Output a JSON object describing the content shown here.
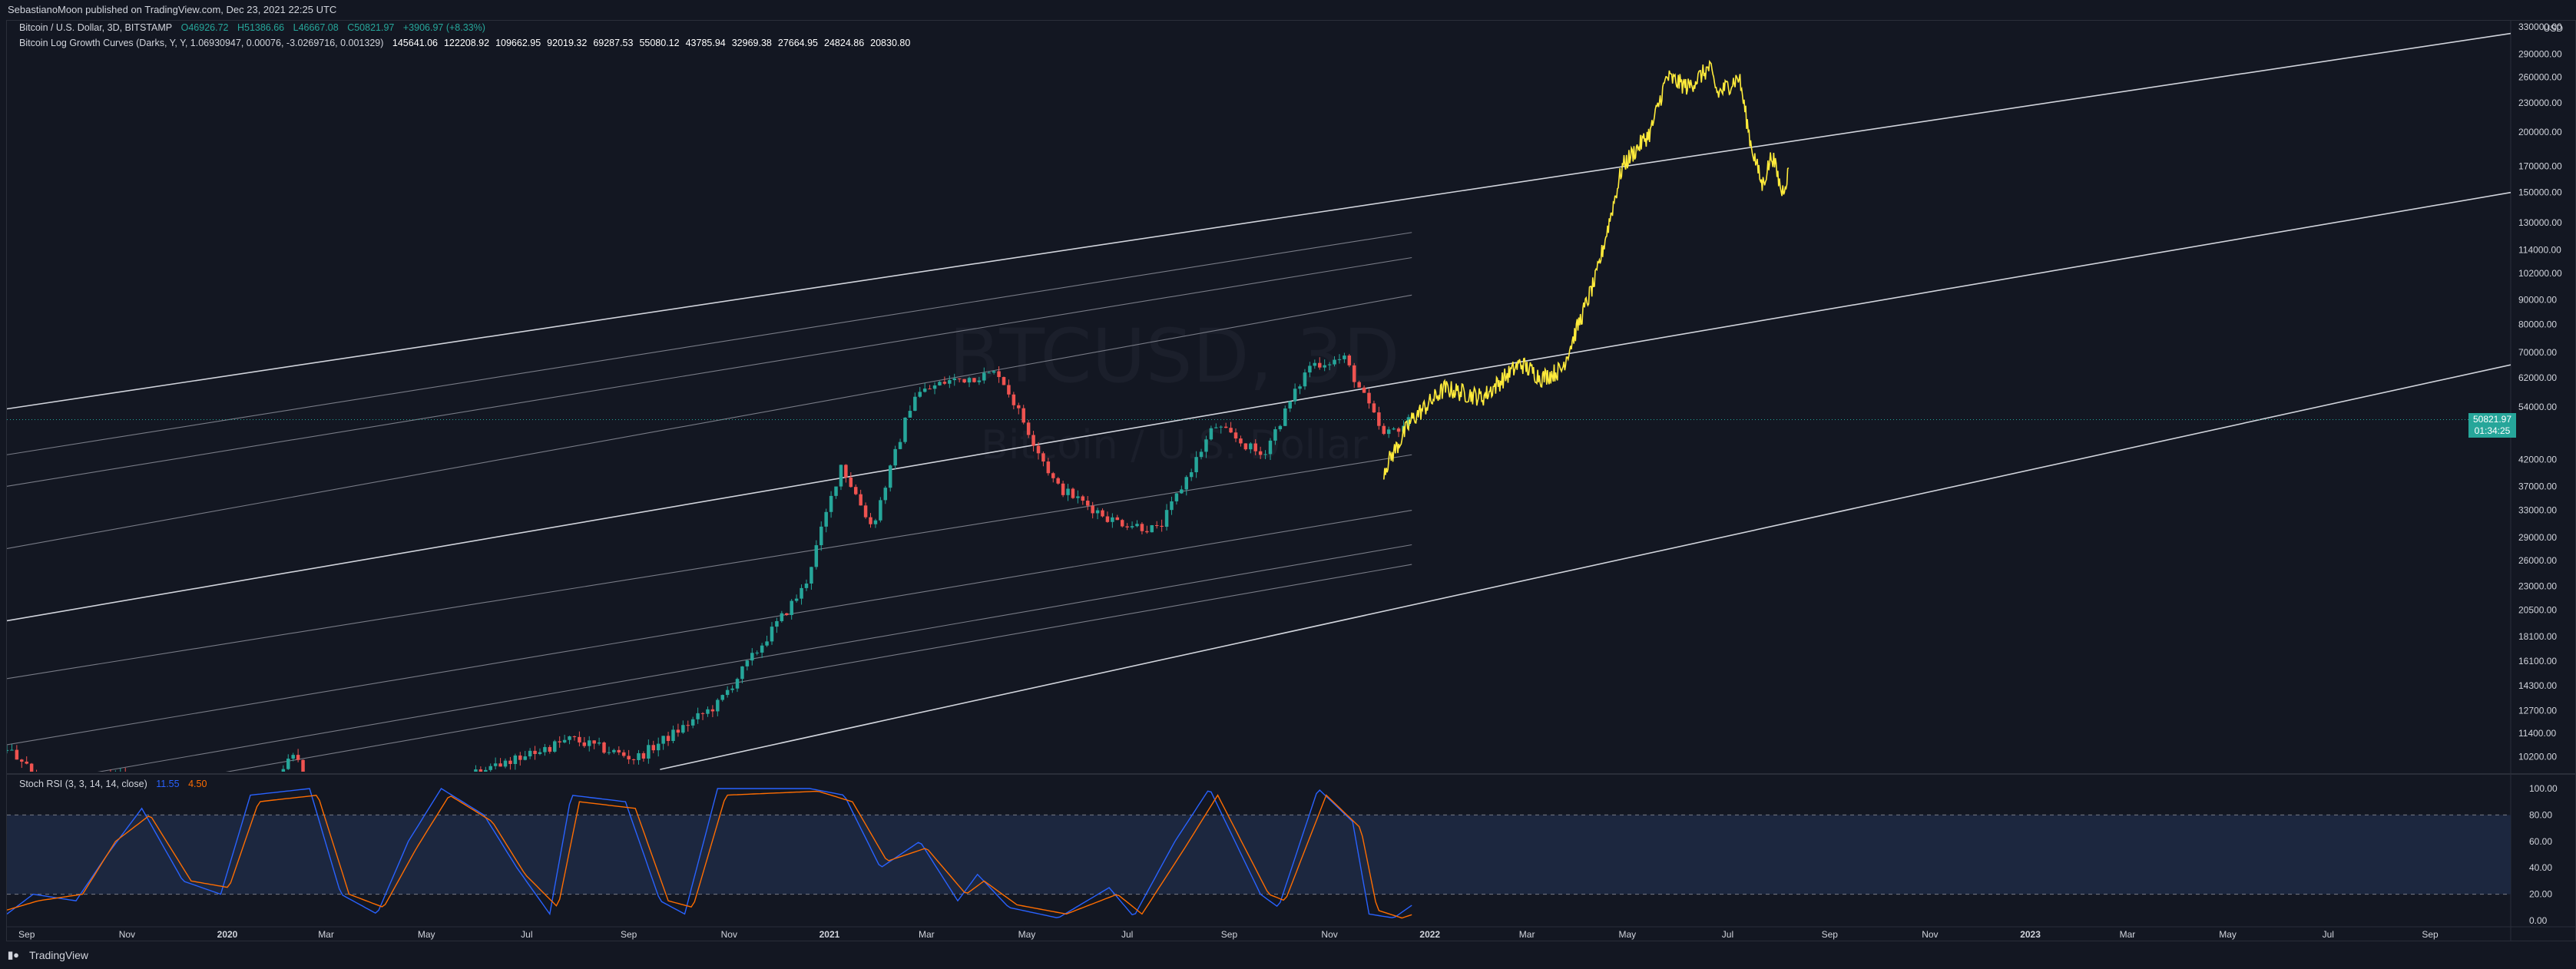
{
  "header": {
    "publisher_line": "SebastianoMoon published on TradingView.com, Dec 23, 2021 22:25 UTC"
  },
  "legend": {
    "symbol": "Bitcoin / U.S. Dollar, 3D, BITSTAMP",
    "open": "O46926.72",
    "high": "H51386.66",
    "low": "L46667.08",
    "close": "C50821.97",
    "change": "+3906.97 (+8.33%)",
    "indicator_name": "Bitcoin Log Growth Curves (Darks, Y, Y, 1.06930947, 0.00076, -3.0269716, 0.001329)",
    "indicator_values": [
      "145641.06",
      "122208.92",
      "109662.95",
      "92019.32",
      "69287.53",
      "55080.12",
      "43785.94",
      "32969.38",
      "27664.95",
      "24824.86",
      "20830.80"
    ],
    "stoch_name": "Stoch RSI (3, 3, 14, 14, close)",
    "stoch_k": "11.55",
    "stoch_d": "4.50"
  },
  "watermark": {
    "symbol": "BTCUSD, 3D",
    "name": "Bitcoin / U.S. Dollar"
  },
  "price_axis": {
    "unit": "USD",
    "last_price": "50821.97",
    "countdown": "01:34:25",
    "labels": [
      "330000.00",
      "290000.00",
      "260000.00",
      "230000.00",
      "200000.00",
      "170000.00",
      "150000.00",
      "130000.00",
      "114000.00",
      "102000.00",
      "90000.00",
      "80000.00",
      "70000.00",
      "62000.00",
      "54000.00",
      "42000.00",
      "37000.00",
      "33000.00",
      "29000.00",
      "26000.00",
      "23000.00",
      "20500.00",
      "18100.00",
      "16100.00",
      "14300.00",
      "12700.00",
      "11400.00",
      "10200.00"
    ]
  },
  "stoch_axis": {
    "labels": [
      "100.00",
      "80.00",
      "60.00",
      "40.00",
      "20.00",
      "0.00"
    ]
  },
  "time_axis": {
    "labels": [
      "Sep",
      "Nov",
      "2020",
      "Mar",
      "May",
      "Jul",
      "Sep",
      "Nov",
      "2021",
      "Mar",
      "May",
      "Jul",
      "Sep",
      "Nov",
      "2022",
      "Mar",
      "May",
      "Jul",
      "Sep",
      "Nov",
      "2023",
      "Mar",
      "May",
      "Jul",
      "Sep"
    ]
  },
  "footer": {
    "brand": "TradingView"
  },
  "colors": {
    "background": "#131722",
    "up": "#26a69a",
    "down": "#ef5350",
    "projection": "#ffeb3b",
    "k_line": "#2962ff",
    "d_line": "#ff6d00",
    "band_fill": "#1e2a44"
  },
  "chart_data": [
    {
      "type": "candlestick",
      "title": "Bitcoin / U.S. Dollar, 3D, BITSTAMP",
      "scale": "log",
      "ylabel": "USD",
      "ylim": [
        9500,
        340000
      ],
      "x_range": [
        "2019-08-20",
        "2023-10-20"
      ],
      "anchors": [
        [
          "2019-08-20",
          10500
        ],
        [
          "2019-09-25",
          8300
        ],
        [
          "2019-10-26",
          9400
        ],
        [
          "2019-12-18",
          6600
        ],
        [
          "2020-02-12",
          10300
        ],
        [
          "2020-03-13",
          4900
        ],
        [
          "2020-04-30",
          8800
        ],
        [
          "2020-06-10",
          9700
        ],
        [
          "2020-07-28",
          11100
        ],
        [
          "2020-09-05",
          10100
        ],
        [
          "2020-10-25",
          13100
        ],
        [
          "2020-12-17",
          23000
        ],
        [
          "2021-01-08",
          41000
        ],
        [
          "2021-01-27",
          30400
        ],
        [
          "2021-02-21",
          57000
        ],
        [
          "2021-03-13",
          61000
        ],
        [
          "2021-04-14",
          63500
        ],
        [
          "2021-05-19",
          37000
        ],
        [
          "2021-06-22",
          31500
        ],
        [
          "2021-07-20",
          30000
        ],
        [
          "2021-08-23",
          49500
        ],
        [
          "2021-09-21",
          42800
        ],
        [
          "2021-10-20",
          66000
        ],
        [
          "2021-11-10",
          68000
        ],
        [
          "2021-12-04",
          47000
        ],
        [
          "2021-12-21",
          50822
        ]
      ]
    },
    {
      "type": "line",
      "title": "projection",
      "scale": "log",
      "anchors": [
        [
          "2021-12-04",
          40000
        ],
        [
          "2021-12-21",
          50822
        ],
        [
          "2022-01-10",
          59000
        ],
        [
          "2022-02-02",
          56500
        ],
        [
          "2022-02-25",
          66500
        ],
        [
          "2022-03-10",
          62000
        ],
        [
          "2022-03-22",
          64500
        ],
        [
          "2022-04-12",
          100000
        ],
        [
          "2022-04-28",
          170000
        ],
        [
          "2022-05-15",
          200000
        ],
        [
          "2022-05-25",
          260000
        ],
        [
          "2022-06-07",
          248000
        ],
        [
          "2022-06-20",
          272000
        ],
        [
          "2022-06-25",
          240000
        ],
        [
          "2022-07-08",
          260000
        ],
        [
          "2022-07-15",
          190000
        ],
        [
          "2022-07-22",
          155000
        ],
        [
          "2022-07-28",
          180000
        ],
        [
          "2022-08-03",
          150000
        ],
        [
          "2022-08-07",
          165000
        ]
      ]
    },
    {
      "type": "line",
      "title": "Bitcoin Log Growth Curves",
      "scale": "log",
      "lines": [
        {
          "from": [
            "2019-08-20",
            53500
          ],
          "to": [
            "2023-10-20",
            320000
          ],
          "weight": "strong"
        },
        {
          "from": [
            "2019-08-20",
            43000
          ],
          "to": [
            "2021-12-21",
            124000
          ],
          "weight": "light"
        },
        {
          "from": [
            "2019-08-20",
            37000
          ],
          "to": [
            "2021-12-21",
            110000
          ],
          "weight": "light"
        },
        {
          "from": [
            "2019-08-20",
            27500
          ],
          "to": [
            "2021-12-21",
            92000
          ],
          "weight": "light"
        },
        {
          "from": [
            "2019-08-20",
            19500
          ],
          "to": [
            "2023-10-20",
            150000
          ],
          "weight": "strong"
        },
        {
          "from": [
            "2019-08-20",
            14800
          ],
          "to": [
            "2021-12-21",
            43000
          ],
          "weight": "light"
        },
        {
          "from": [
            "2019-08-20",
            10800
          ],
          "to": [
            "2021-12-21",
            33000
          ],
          "weight": "light"
        },
        {
          "from": [
            "2019-08-20",
            8800
          ],
          "to": [
            "2021-12-21",
            28000
          ],
          "weight": "light"
        },
        {
          "from": [
            "2019-08-20",
            7900
          ],
          "to": [
            "2021-12-21",
            25500
          ],
          "weight": "light"
        },
        {
          "from": [
            "2020-09-20",
            9600
          ],
          "to": [
            "2023-10-20",
            66000
          ],
          "weight": "strong"
        }
      ]
    },
    {
      "type": "line",
      "title": "Stoch RSI (3, 3, 14, 14, close)",
      "ylim": [
        0,
        100
      ],
      "bands": [
        20,
        80
      ],
      "series": [
        {
          "name": "K",
          "anchors": [
            [
              "2019-08-20",
              5
            ],
            [
              "2019-09-05",
              20
            ],
            [
              "2019-10-01",
              15
            ],
            [
              "2019-10-20",
              50
            ],
            [
              "2019-11-10",
              85
            ],
            [
              "2019-12-05",
              30
            ],
            [
              "2019-12-28",
              20
            ],
            [
              "2020-01-15",
              95
            ],
            [
              "2020-02-20",
              100
            ],
            [
              "2020-03-10",
              20
            ],
            [
              "2020-04-01",
              5
            ],
            [
              "2020-04-20",
              60
            ],
            [
              "2020-05-10",
              100
            ],
            [
              "2020-06-05",
              80
            ],
            [
              "2020-06-25",
              40
            ],
            [
              "2020-07-15",
              5
            ],
            [
              "2020-07-28",
              95
            ],
            [
              "2020-08-30",
              90
            ],
            [
              "2020-09-20",
              15
            ],
            [
              "2020-10-05",
              5
            ],
            [
              "2020-10-25",
              100
            ],
            [
              "2020-12-20",
              100
            ],
            [
              "2021-01-10",
              95
            ],
            [
              "2021-02-01",
              40
            ],
            [
              "2021-02-25",
              60
            ],
            [
              "2021-03-20",
              15
            ],
            [
              "2021-04-01",
              35
            ],
            [
              "2021-04-20",
              10
            ],
            [
              "2021-05-20",
              2
            ],
            [
              "2021-06-20",
              25
            ],
            [
              "2021-07-05",
              3
            ],
            [
              "2021-07-30",
              60
            ],
            [
              "2021-08-20",
              100
            ],
            [
              "2021-09-20",
              20
            ],
            [
              "2021-10-01",
              10
            ],
            [
              "2021-10-25",
              100
            ],
            [
              "2021-11-15",
              75
            ],
            [
              "2021-11-25",
              5
            ],
            [
              "2021-12-10",
              2
            ],
            [
              "2021-12-21",
              11.55
            ]
          ]
        },
        {
          "name": "D",
          "anchors": [
            [
              "2019-08-20",
              8
            ],
            [
              "2019-09-08",
              15
            ],
            [
              "2019-10-05",
              20
            ],
            [
              "2019-10-25",
              60
            ],
            [
              "2019-11-15",
              80
            ],
            [
              "2019-12-10",
              30
            ],
            [
              "2020-01-02",
              25
            ],
            [
              "2020-01-20",
              90
            ],
            [
              "2020-02-25",
              95
            ],
            [
              "2020-03-15",
              20
            ],
            [
              "2020-04-05",
              10
            ],
            [
              "2020-04-25",
              55
            ],
            [
              "2020-05-15",
              95
            ],
            [
              "2020-06-10",
              75
            ],
            [
              "2020-06-30",
              35
            ],
            [
              "2020-07-20",
              10
            ],
            [
              "2020-08-02",
              90
            ],
            [
              "2020-09-05",
              85
            ],
            [
              "2020-09-25",
              15
            ],
            [
              "2020-10-10",
              10
            ],
            [
              "2020-10-30",
              95
            ],
            [
              "2020-12-25",
              98
            ],
            [
              "2021-01-15",
              90
            ],
            [
              "2021-02-05",
              45
            ],
            [
              "2021-03-01",
              55
            ],
            [
              "2021-03-25",
              20
            ],
            [
              "2021-04-05",
              30
            ],
            [
              "2021-04-25",
              12
            ],
            [
              "2021-05-25",
              5
            ],
            [
              "2021-06-25",
              20
            ],
            [
              "2021-07-10",
              5
            ],
            [
              "2021-08-05",
              55
            ],
            [
              "2021-08-25",
              95
            ],
            [
              "2021-09-25",
              20
            ],
            [
              "2021-10-05",
              15
            ],
            [
              "2021-10-30",
              95
            ],
            [
              "2021-11-20",
              70
            ],
            [
              "2021-11-30",
              8
            ],
            [
              "2021-12-15",
              2
            ],
            [
              "2021-12-21",
              4.5
            ]
          ]
        }
      ]
    }
  ]
}
